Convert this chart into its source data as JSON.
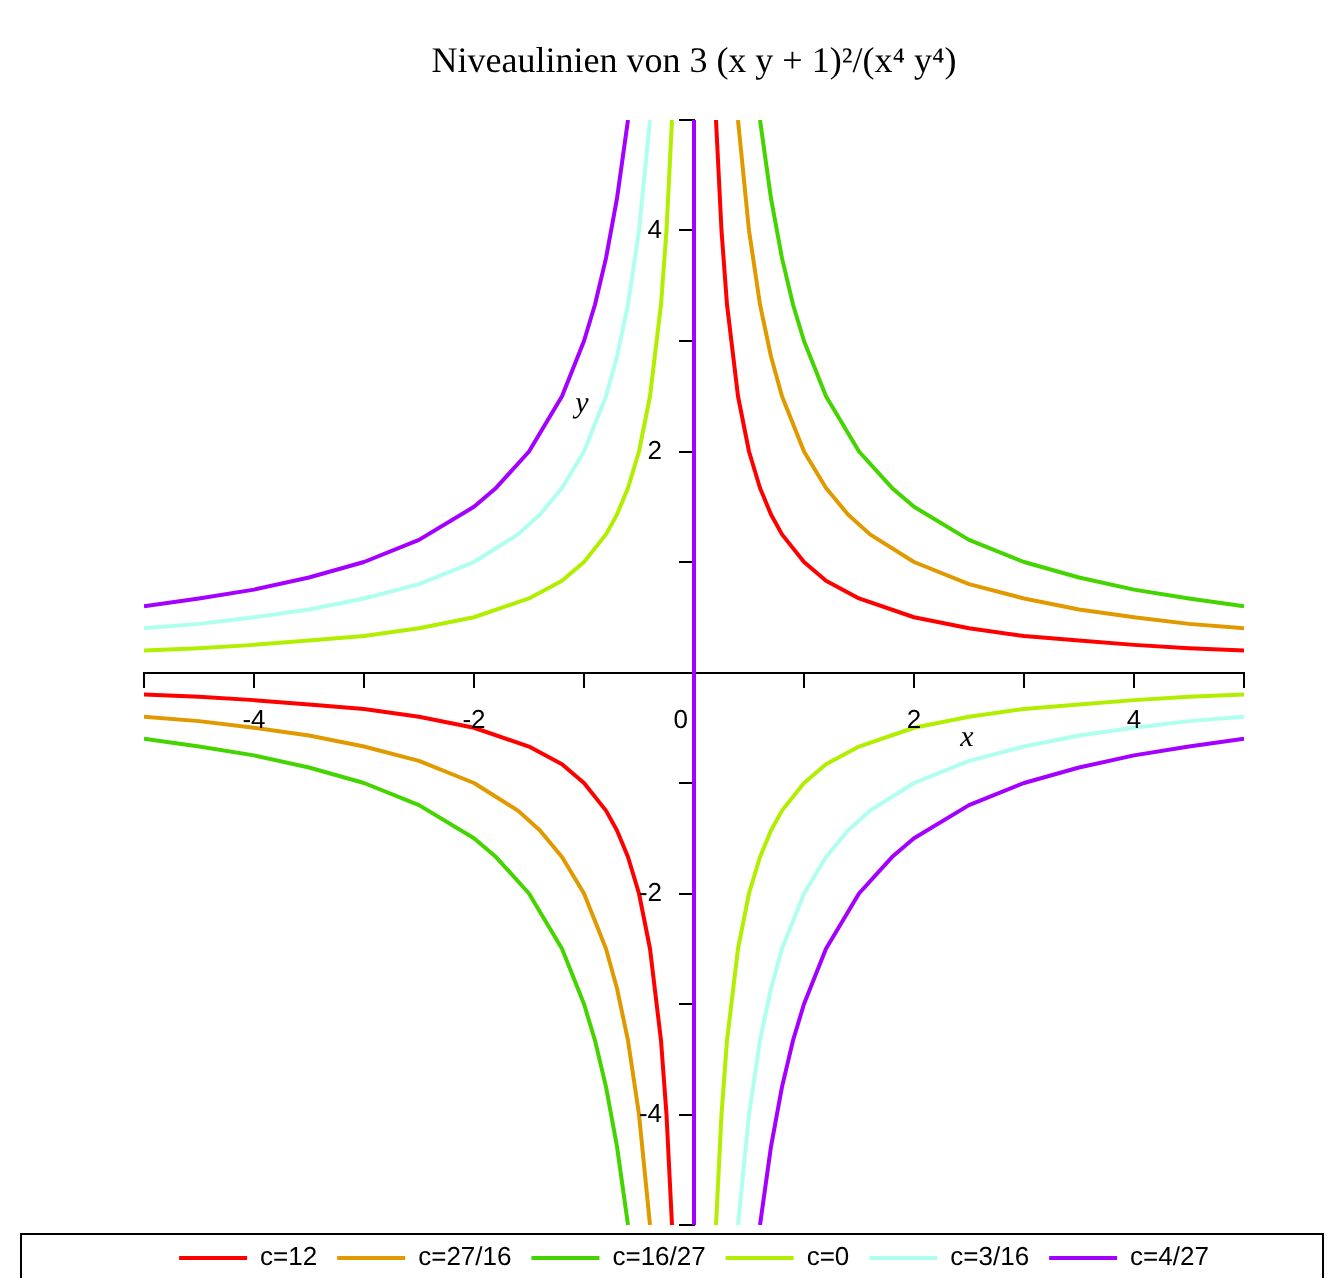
{
  "chart_data": {
    "type": "line",
    "title": "Niveaulinien von 3 (x y + 1)²/(x⁴ y⁴)",
    "xlabel": "x",
    "ylabel": "y",
    "xlim": [
      -5,
      5
    ],
    "ylim": [
      -5,
      5
    ],
    "xticks": [
      {
        "value": -5,
        "label": null
      },
      -4,
      {
        "value": -3,
        "label": null
      },
      -2,
      {
        "value": -1,
        "label": null
      },
      0,
      {
        "value": 1,
        "label": null
      },
      2,
      {
        "value": 3,
        "label": null
      },
      4,
      {
        "value": 5,
        "label": null
      }
    ],
    "yticks": [
      {
        "value": -5,
        "label": null
      },
      -4,
      {
        "value": -3,
        "label": null
      },
      -2,
      {
        "value": -1,
        "label": null
      },
      {
        "value": 1,
        "label": null
      },
      2,
      {
        "value": 3,
        "label": null
      },
      4,
      {
        "value": 5,
        "label": null
      }
    ],
    "legend": "bottom",
    "series": [
      {
        "name": "c=12",
        "color": "#ff0000",
        "x": [
          -5,
          -4.5,
          -4,
          -3.5,
          -3,
          -2.5,
          -2,
          -1.5,
          -1.2,
          -1,
          -0.8,
          -0.7,
          -0.6,
          -0.5,
          -0.4,
          -0.3,
          -0.25,
          -0.2,
          0,
          0.2,
          0.25,
          0.3,
          0.4,
          0.5,
          0.6,
          0.7,
          0.8,
          1,
          1.2,
          1.5,
          2,
          2.5,
          3,
          3.5,
          4,
          4.5,
          5
        ],
        "values": [
          -0.2,
          -0.22,
          -0.25,
          -0.29,
          -0.33,
          -0.4,
          -0.5,
          -0.67,
          -0.83,
          -1,
          -1.25,
          -1.43,
          -1.67,
          -2,
          -2.5,
          -3.33,
          -4,
          -5,
          null,
          5,
          4,
          3.33,
          2.5,
          2,
          1.67,
          1.43,
          1.25,
          1,
          0.83,
          0.67,
          0.5,
          0.4,
          0.33,
          0.29,
          0.25,
          0.22,
          0.2
        ]
      },
      {
        "name": "c=27/16",
        "color": "#e09a00",
        "x": [
          -5,
          -4.5,
          -4,
          -3.5,
          -3,
          -2.5,
          -2,
          -1.6,
          -1.4,
          -1.2,
          -1,
          -0.8,
          -0.7,
          -0.6,
          -0.5,
          -0.4,
          0,
          0.4,
          0.5,
          0.6,
          0.7,
          0.8,
          1,
          1.2,
          1.4,
          1.6,
          2,
          2.5,
          3,
          3.5,
          4,
          4.5,
          5
        ],
        "values": [
          -0.4,
          -0.44,
          -0.5,
          -0.57,
          -0.67,
          -0.8,
          -1,
          -1.25,
          -1.43,
          -1.67,
          -2,
          -2.5,
          -2.86,
          -3.33,
          -4,
          -5,
          null,
          5,
          4,
          3.33,
          2.86,
          2.5,
          2,
          1.67,
          1.43,
          1.25,
          1,
          0.8,
          0.67,
          0.57,
          0.5,
          0.44,
          0.4
        ]
      },
      {
        "name": "c=16/27",
        "color": "#44d400",
        "x": [
          -5,
          -4.5,
          -4,
          -3.5,
          -3,
          -2.5,
          -2,
          -1.8,
          -1.5,
          -1.2,
          -1,
          -0.9,
          -0.8,
          -0.7,
          -0.6,
          0,
          0.6,
          0.7,
          0.8,
          0.9,
          1,
          1.2,
          1.5,
          1.8,
          2,
          2.5,
          3,
          3.5,
          4,
          4.5,
          5
        ],
        "values": [
          -0.6,
          -0.67,
          -0.75,
          -0.86,
          -1,
          -1.2,
          -1.5,
          -1.67,
          -2,
          -2.5,
          -3,
          -3.33,
          -3.75,
          -4.29,
          -5,
          null,
          5,
          4.29,
          3.75,
          3.33,
          3,
          2.5,
          2,
          1.67,
          1.5,
          1.2,
          1,
          0.86,
          0.75,
          0.67,
          0.6
        ]
      },
      {
        "name": "c=0",
        "color": "#b2ee00",
        "x": [
          -5,
          -4.5,
          -4,
          -3.5,
          -3,
          -2.5,
          -2,
          -1.5,
          -1.2,
          -1,
          -0.8,
          -0.7,
          -0.6,
          -0.5,
          -0.4,
          -0.3,
          -0.25,
          -0.2,
          0,
          0.2,
          0.25,
          0.3,
          0.4,
          0.5,
          0.6,
          0.7,
          0.8,
          1,
          1.2,
          1.5,
          2,
          2.5,
          3,
          3.5,
          4,
          4.5,
          5
        ],
        "values": [
          0.2,
          0.22,
          0.25,
          0.29,
          0.33,
          0.4,
          0.5,
          0.67,
          0.83,
          1,
          1.25,
          1.43,
          1.67,
          2,
          2.5,
          3.33,
          4,
          5,
          null,
          -5,
          -4,
          -3.33,
          -2.5,
          -2,
          -1.67,
          -1.43,
          -1.25,
          -1,
          -0.83,
          -0.67,
          -0.5,
          -0.4,
          -0.33,
          -0.29,
          -0.25,
          -0.22,
          -0.2
        ]
      },
      {
        "name": "c=3/16",
        "color": "#aefff0",
        "x": [
          -5,
          -4.5,
          -4,
          -3.5,
          -3,
          -2.5,
          -2,
          -1.6,
          -1.4,
          -1.2,
          -1,
          -0.8,
          -0.7,
          -0.6,
          -0.5,
          -0.4,
          0,
          0.4,
          0.5,
          0.6,
          0.7,
          0.8,
          1,
          1.2,
          1.4,
          1.6,
          2,
          2.5,
          3,
          3.5,
          4,
          4.5,
          5
        ],
        "values": [
          0.4,
          0.44,
          0.5,
          0.57,
          0.67,
          0.8,
          1,
          1.25,
          1.43,
          1.67,
          2,
          2.5,
          2.86,
          3.33,
          4,
          5,
          null,
          -5,
          -4,
          -3.33,
          -2.86,
          -2.5,
          -2,
          -1.67,
          -1.43,
          -1.25,
          -1,
          -0.8,
          -0.67,
          -0.57,
          -0.5,
          -0.44,
          -0.4
        ]
      },
      {
        "name": "c=4/27",
        "color": "#a300ff",
        "x": [
          -5,
          -4.5,
          -4,
          -3.5,
          -3,
          -2.5,
          -2,
          -1.8,
          -1.5,
          -1.2,
          -1,
          -0.9,
          -0.8,
          -0.7,
          -0.6,
          0,
          0.6,
          0.7,
          0.8,
          0.9,
          1,
          1.2,
          1.5,
          1.8,
          2,
          2.5,
          3,
          3.5,
          4,
          4.5,
          5
        ],
        "values": [
          0.6,
          0.67,
          0.75,
          0.86,
          1,
          1.2,
          1.5,
          1.67,
          2,
          2.5,
          3,
          3.33,
          3.75,
          4.29,
          5,
          null,
          -5,
          -4.29,
          -3.75,
          -3.33,
          -3,
          -2.5,
          -2,
          -1.67,
          -1.5,
          -1.2,
          -1,
          -0.86,
          -0.75,
          -0.67,
          -0.6
        ]
      },
      {
        "color": "#a300ff",
        "x": [
          0,
          0
        ],
        "values": [
          -5,
          5
        ]
      }
    ]
  }
}
